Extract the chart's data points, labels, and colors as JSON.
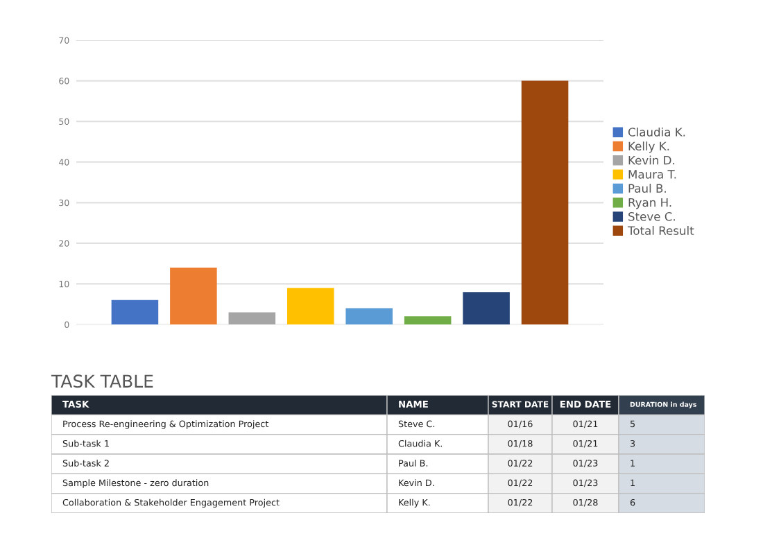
{
  "chart_data": [
    {
      "type": "bar",
      "categories": [
        null,
        null,
        null,
        null,
        null,
        null,
        null,
        null
      ],
      "series": [
        {
          "name": "Claudia K.",
          "color": "#4472c4",
          "values": [
            6,
            null,
            null,
            null,
            null,
            null,
            null,
            null
          ]
        },
        {
          "name": "Kelly K.",
          "color": "#ed7d31",
          "values": [
            null,
            14,
            null,
            null,
            null,
            null,
            null,
            null
          ]
        },
        {
          "name": "Kevin D.",
          "color": "#a5a5a5",
          "values": [
            null,
            null,
            3,
            null,
            null,
            null,
            null,
            null
          ]
        },
        {
          "name": "Maura T.",
          "color": "#ffc000",
          "values": [
            null,
            null,
            null,
            9,
            null,
            null,
            null,
            null
          ]
        },
        {
          "name": "Paul B.",
          "color": "#5b9bd5",
          "values": [
            null,
            null,
            null,
            null,
            4,
            null,
            null,
            null
          ]
        },
        {
          "name": "Ryan H.",
          "color": "#70ad47",
          "values": [
            null,
            null,
            null,
            null,
            null,
            2,
            null,
            null
          ]
        },
        {
          "name": "Steve C.",
          "color": "#264478",
          "values": [
            null,
            null,
            null,
            null,
            null,
            null,
            8,
            null
          ]
        },
        {
          "name": "Total Result",
          "color": "#9e480e",
          "values": [
            null,
            null,
            null,
            null,
            null,
            null,
            null,
            60
          ]
        }
      ],
      "ylim": [
        0,
        70
      ],
      "yticks": [
        0,
        10,
        20,
        30,
        40,
        50,
        60,
        70
      ],
      "grid": "y",
      "legend": "right",
      "tick_labels": "y"
    },
    {
      "type": "other",
      "title": "TASK TABLE",
      "annotations": [
        "TASK",
        "NAME",
        "START DATE",
        "END DATE",
        "DURATION in days",
        "Process Re-engineering & Optimization Project",
        "Steve C.",
        "01/16",
        "01/21",
        "5",
        "Sub-task 1",
        "Claudia K.",
        "01/18",
        "01/21",
        "3",
        "Sub-task 2",
        "Paul B.",
        "01/22",
        "01/23",
        "1",
        "Sample Milestone - zero duration",
        "Kevin D.",
        "01/22",
        "01/23",
        "1",
        "Collaboration & Stakeholder Engagement Project",
        "Kelly K.",
        "01/22",
        "01/28",
        "6"
      ]
    }
  ]
}
